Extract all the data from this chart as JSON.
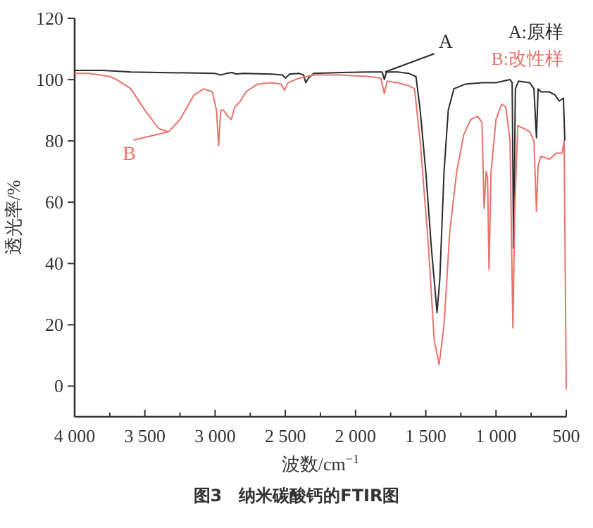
{
  "chart_data": {
    "type": "line",
    "title": "图3　纳米碳酸钙的FTIR图",
    "xlabel": "波数/cm$^{−1}$",
    "ylabel": "透光率/%",
    "xlim": [
      4000,
      500
    ],
    "xticks": [
      {
        "value": 4000,
        "label": "4 000"
      },
      {
        "value": 3750,
        "label": null
      },
      {
        "value": 3500,
        "label": "3 500"
      },
      {
        "value": 3250,
        "label": null
      },
      {
        "value": 3000,
        "label": "3 000"
      },
      {
        "value": 2750,
        "label": null
      },
      {
        "value": 2500,
        "label": "2 500"
      },
      {
        "value": 2250,
        "label": null
      },
      {
        "value": 2000,
        "label": "2 000"
      },
      {
        "value": 1750,
        "label": null
      },
      {
        "value": 1500,
        "label": "1 500"
      },
      {
        "value": 1250,
        "label": null
      },
      {
        "value": 1000,
        "label": "1 000"
      },
      {
        "value": 750,
        "label": null
      },
      {
        "value": 500,
        "label": "500"
      }
    ],
    "ylim": [
      -10,
      120
    ],
    "yticks": [
      0,
      20,
      40,
      60,
      80,
      100,
      120
    ],
    "grid": false,
    "legend": "top right",
    "marker": "none",
    "line_style": "solid",
    "annotations": [
      {
        "text": "A",
        "x": 1790,
        "y": 102.5
      },
      {
        "text": "B",
        "x": 3330,
        "y": 83
      }
    ],
    "series": [
      {
        "name": "A:原样",
        "color": "#2b2b2b",
        "x": [
          4000,
          3800,
          3600,
          3400,
          3200,
          3000,
          2960,
          2920,
          2880,
          2850,
          2800,
          2600,
          2520,
          2500,
          2470,
          2400,
          2370,
          2355,
          2335,
          2300,
          2100,
          1900,
          1810,
          1795,
          1780,
          1700,
          1620,
          1570,
          1540,
          1500,
          1460,
          1420,
          1400,
          1370,
          1340,
          1300,
          1220,
          1100,
          1000,
          900,
          885,
          875,
          862,
          840,
          760,
          730,
          712,
          700,
          680,
          620,
          580,
          550,
          520,
          510
        ],
        "values": [
          103,
          103,
          102.5,
          102.3,
          102.2,
          102,
          101.5,
          102,
          102.3,
          101.8,
          102,
          101.8,
          101.5,
          100.5,
          101.8,
          102,
          101.5,
          99,
          100.5,
          102,
          102.3,
          102.5,
          102.5,
          100,
          102.5,
          102.5,
          102,
          101,
          90,
          70,
          45,
          24,
          35,
          70,
          90,
          97,
          98.5,
          99,
          99,
          100,
          99,
          45,
          97,
          99.5,
          99,
          97,
          81,
          97,
          96,
          96,
          95,
          93,
          94,
          80
        ]
      },
      {
        "name": "B:改性样",
        "color": "#e8736b",
        "x": [
          4000,
          3900,
          3750,
          3700,
          3600,
          3500,
          3400,
          3330,
          3250,
          3150,
          3080,
          3020,
          2990,
          2975,
          2960,
          2940,
          2910,
          2885,
          2860,
          2820,
          2780,
          2700,
          2600,
          2530,
          2506,
          2480,
          2400,
          2300,
          2100,
          1900,
          1820,
          1795,
          1775,
          1700,
          1620,
          1580,
          1540,
          1480,
          1440,
          1405,
          1370,
          1330,
          1280,
          1230,
          1180,
          1130,
          1100,
          1085,
          1070,
          1060,
          1050,
          1035,
          1000,
          960,
          930,
          900,
          880,
          865,
          845,
          800,
          760,
          730,
          712,
          700,
          680,
          620,
          570,
          530,
          515,
          500
        ],
        "values": [
          102,
          102,
          101,
          100,
          97,
          90,
          84,
          83,
          87,
          95,
          97,
          96,
          90,
          78.5,
          90,
          90,
          88,
          87,
          91,
          93,
          96,
          98.5,
          99,
          98.5,
          96.5,
          99,
          100.5,
          101.5,
          101.5,
          101,
          100.5,
          95.5,
          99.5,
          99,
          98,
          97,
          80,
          45,
          15,
          7,
          20,
          50,
          70,
          82,
          87,
          88,
          86,
          58,
          70,
          68,
          38,
          70,
          87,
          92,
          91,
          80,
          19,
          60,
          85,
          84,
          83,
          80,
          57,
          72,
          75,
          74,
          76,
          76,
          80,
          -1
        ]
      }
    ]
  }
}
